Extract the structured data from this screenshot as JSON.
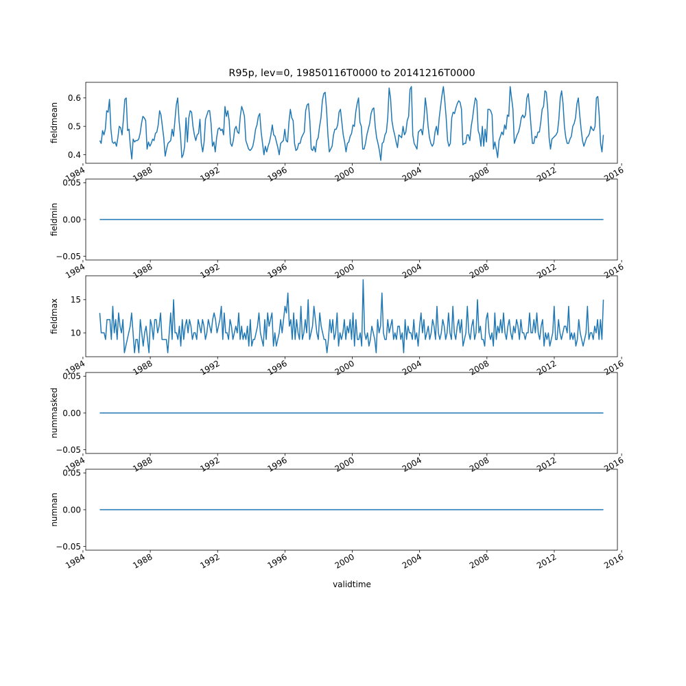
{
  "chart_data": {
    "type": "line",
    "title": "R95p, lev=0, 19850116T0000 to 20141216T0000",
    "xlabel": "validtime",
    "x_start": "1985-01",
    "x_end": "2014-12",
    "x_range": [
      "1984-03",
      "2015-10"
    ],
    "x_ticks": [
      "1984",
      "1988",
      "1992",
      "1996",
      "2000",
      "2004",
      "2008",
      "2012",
      "2016"
    ],
    "line_color": "#1f77b4",
    "grid": false,
    "legend": "none",
    "panels": [
      {
        "ylabel": "fieldmean",
        "ylim": [
          0.37,
          0.655
        ],
        "yticks": [
          "0.4",
          "0.5",
          "0.6"
        ],
        "values": [
          0.45,
          0.44,
          0.485,
          0.47,
          0.49,
          0.555,
          0.55,
          0.595,
          0.49,
          0.445,
          0.44,
          0.445,
          0.43,
          0.46,
          0.5,
          0.495,
          0.47,
          0.525,
          0.595,
          0.6,
          0.485,
          0.49,
          0.43,
          0.385,
          0.455,
          0.445,
          0.45,
          0.45,
          0.455,
          0.475,
          0.51,
          0.535,
          0.53,
          0.52,
          0.42,
          0.445,
          0.43,
          0.44,
          0.455,
          0.45,
          0.475,
          0.48,
          0.505,
          0.555,
          0.54,
          0.5,
          0.46,
          0.395,
          0.42,
          0.44,
          0.445,
          0.45,
          0.49,
          0.465,
          0.52,
          0.575,
          0.6,
          0.52,
          0.47,
          0.39,
          0.4,
          0.43,
          0.53,
          0.445,
          0.53,
          0.555,
          0.55,
          0.5,
          0.47,
          0.45,
          0.47,
          0.475,
          0.525,
          0.44,
          0.41,
          0.445,
          0.525,
          0.54,
          0.555,
          0.555,
          0.51,
          0.43,
          0.445,
          0.41,
          0.46,
          0.49,
          0.495,
          0.485,
          0.49,
          0.47,
          0.57,
          0.535,
          0.555,
          0.52,
          0.44,
          0.43,
          0.45,
          0.49,
          0.5,
          0.48,
          0.475,
          0.535,
          0.57,
          0.555,
          0.535,
          0.45,
          0.435,
          0.42,
          0.415,
          0.42,
          0.43,
          0.455,
          0.49,
          0.505,
          0.535,
          0.545,
          0.48,
          0.44,
          0.4,
          0.43,
          0.41,
          0.43,
          0.445,
          0.47,
          0.505,
          0.47,
          0.465,
          0.445,
          0.425,
          0.4,
          0.44,
          0.445,
          0.45,
          0.49,
          0.45,
          0.445,
          0.515,
          0.56,
          0.53,
          0.52,
          0.44,
          0.415,
          0.42,
          0.44,
          0.44,
          0.46,
          0.47,
          0.48,
          0.555,
          0.575,
          0.58,
          0.52,
          0.42,
          0.415,
          0.43,
          0.41,
          0.45,
          0.46,
          0.5,
          0.53,
          0.59,
          0.615,
          0.62,
          0.56,
          0.47,
          0.41,
          0.42,
          0.43,
          0.47,
          0.49,
          0.49,
          0.505,
          0.55,
          0.56,
          0.515,
          0.47,
          0.445,
          0.41,
          0.44,
          0.445,
          0.465,
          0.475,
          0.505,
          0.5,
          0.55,
          0.58,
          0.6,
          0.515,
          0.5,
          0.42,
          0.42,
          0.44,
          0.47,
          0.49,
          0.51,
          0.545,
          0.56,
          0.565,
          0.5,
          0.46,
          0.44,
          0.415,
          0.38,
          0.44,
          0.445,
          0.47,
          0.48,
          0.53,
          0.635,
          0.6,
          0.52,
          0.49,
          0.47,
          0.445,
          0.425,
          0.47,
          0.465,
          0.46,
          0.5,
          0.47,
          0.48,
          0.52,
          0.535,
          0.63,
          0.64,
          0.47,
          0.44,
          0.43,
          0.42,
          0.48,
          0.485,
          0.49,
          0.47,
          0.52,
          0.6,
          0.56,
          0.5,
          0.46,
          0.44,
          0.43,
          0.44,
          0.48,
          0.5,
          0.47,
          0.53,
          0.57,
          0.61,
          0.64,
          0.59,
          0.53,
          0.45,
          0.43,
          0.44,
          0.53,
          0.55,
          0.545,
          0.565,
          0.58,
          0.59,
          0.585,
          0.56,
          0.435,
          0.44,
          0.44,
          0.47,
          0.47,
          0.45,
          0.5,
          0.53,
          0.57,
          0.6,
          0.59,
          0.485,
          0.47,
          0.43,
          0.5,
          0.43,
          0.49,
          0.445,
          0.56,
          0.56,
          0.555,
          0.54,
          0.42,
          0.445,
          0.42,
          0.39,
          0.45,
          0.465,
          0.48,
          0.47,
          0.505,
          0.49,
          0.54,
          0.535,
          0.64,
          0.6,
          0.56,
          0.44,
          0.455,
          0.47,
          0.48,
          0.5,
          0.53,
          0.54,
          0.53,
          0.54,
          0.6,
          0.615,
          0.565,
          0.5,
          0.44,
          0.44,
          0.465,
          0.46,
          0.48,
          0.48,
          0.515,
          0.56,
          0.57,
          0.625,
          0.62,
          0.56,
          0.46,
          0.42,
          0.455,
          0.46,
          0.465,
          0.47,
          0.48,
          0.525,
          0.6,
          0.625,
          0.58,
          0.5,
          0.46,
          0.44,
          0.44,
          0.455,
          0.465,
          0.5,
          0.51,
          0.53,
          0.58,
          0.6,
          0.54,
          0.49,
          0.45,
          0.43,
          0.445,
          0.46,
          0.465,
          0.475,
          0.5,
          0.49,
          0.485,
          0.5,
          0.6,
          0.605,
          0.54,
          0.44,
          0.41,
          0.47
        ]
      },
      {
        "ylabel": "fieldmin",
        "ylim": [
          -0.055,
          0.055
        ],
        "yticks": [
          "−0.05",
          "0.00",
          "0.05"
        ],
        "constant": 0
      },
      {
        "ylabel": "fieldmax",
        "ylim": [
          6.4,
          18.6
        ],
        "yticks": [
          "10",
          "15"
        ],
        "values": [
          13,
          10,
          10,
          10,
          9,
          12,
          12,
          12,
          9,
          14,
          10,
          12,
          9,
          13,
          11,
          10,
          12,
          7,
          8,
          9,
          10,
          11,
          13,
          10,
          7,
          9,
          9,
          7,
          12,
          10,
          8,
          10,
          11,
          9,
          7,
          12,
          11,
          9,
          12,
          12,
          10,
          11,
          13,
          9,
          9,
          9,
          9,
          7,
          10,
          13,
          9,
          15,
          10,
          10,
          9,
          11,
          8,
          12,
          9,
          11,
          12,
          10,
          12,
          11,
          9,
          10,
          10,
          9,
          12,
          11,
          10,
          12,
          11,
          9,
          10,
          12,
          11,
          10,
          12,
          13,
          12,
          10,
          11,
          12,
          14,
          9,
          13,
          10,
          10,
          9,
          12,
          11,
          9,
          10,
          11,
          10,
          13,
          9,
          11,
          9,
          10,
          9,
          11,
          8,
          12,
          8,
          9,
          9,
          10,
          11,
          13,
          10,
          9,
          8,
          12,
          9,
          13,
          11,
          12,
          13,
          8,
          10,
          8,
          9,
          10,
          12,
          10,
          12,
          14,
          13,
          16,
          11,
          12,
          9,
          13,
          9,
          12,
          10,
          9,
          14,
          9,
          10,
          12,
          10,
          15,
          9,
          10,
          11,
          14,
          12,
          10,
          9,
          13,
          11,
          10,
          9,
          9,
          7,
          9,
          12,
          10,
          12,
          9,
          10,
          13,
          8,
          10,
          9,
          10,
          12,
          9,
          11,
          10,
          12,
          9,
          13,
          8,
          12,
          9,
          9,
          10,
          8,
          18,
          10,
          9,
          10,
          8,
          9,
          11,
          10,
          9,
          7,
          12,
          10,
          11,
          16,
          10,
          9,
          9,
          12,
          10,
          11,
          12,
          9,
          10,
          9,
          11,
          11,
          9,
          10,
          7,
          12,
          9,
          11,
          10,
          10,
          9,
          12,
          9,
          10,
          8,
          11,
          13,
          10,
          12,
          9,
          10,
          11,
          9,
          10,
          12,
          11,
          9,
          14,
          10,
          9,
          10,
          12,
          11,
          9,
          10,
          13,
          10,
          9,
          14,
          10,
          9,
          11,
          12,
          10,
          12,
          8,
          9,
          10,
          14,
          10,
          9,
          11,
          12,
          9,
          10,
          15,
          10,
          11,
          9,
          9,
          8,
          12,
          13,
          10,
          9,
          10,
          8,
          13,
          9,
          11,
          10,
          12,
          10,
          13,
          10,
          9,
          11,
          12,
          10,
          9,
          11,
          10,
          12,
          11,
          9,
          12,
          10,
          10,
          9,
          10,
          10,
          13,
          10,
          10,
          12,
          10,
          13,
          10,
          9,
          11,
          12,
          8,
          10,
          9,
          10,
          8,
          9,
          10,
          14,
          9,
          9,
          12,
          10,
          9,
          10,
          11,
          11,
          10,
          14,
          9,
          10,
          9,
          10,
          8,
          9,
          12,
          10,
          9,
          8,
          9,
          10,
          14,
          9,
          10,
          10,
          9,
          11,
          10,
          12,
          9,
          12,
          9,
          15
        ]
      },
      {
        "ylabel": "nummasked",
        "ylim": [
          -0.055,
          0.055
        ],
        "yticks": [
          "−0.05",
          "0.00",
          "0.05"
        ],
        "constant": 0
      },
      {
        "ylabel": "numnan",
        "ylim": [
          -0.055,
          0.055
        ],
        "yticks": [
          "−0.05",
          "0.00",
          "0.05"
        ],
        "constant": 0
      }
    ]
  }
}
